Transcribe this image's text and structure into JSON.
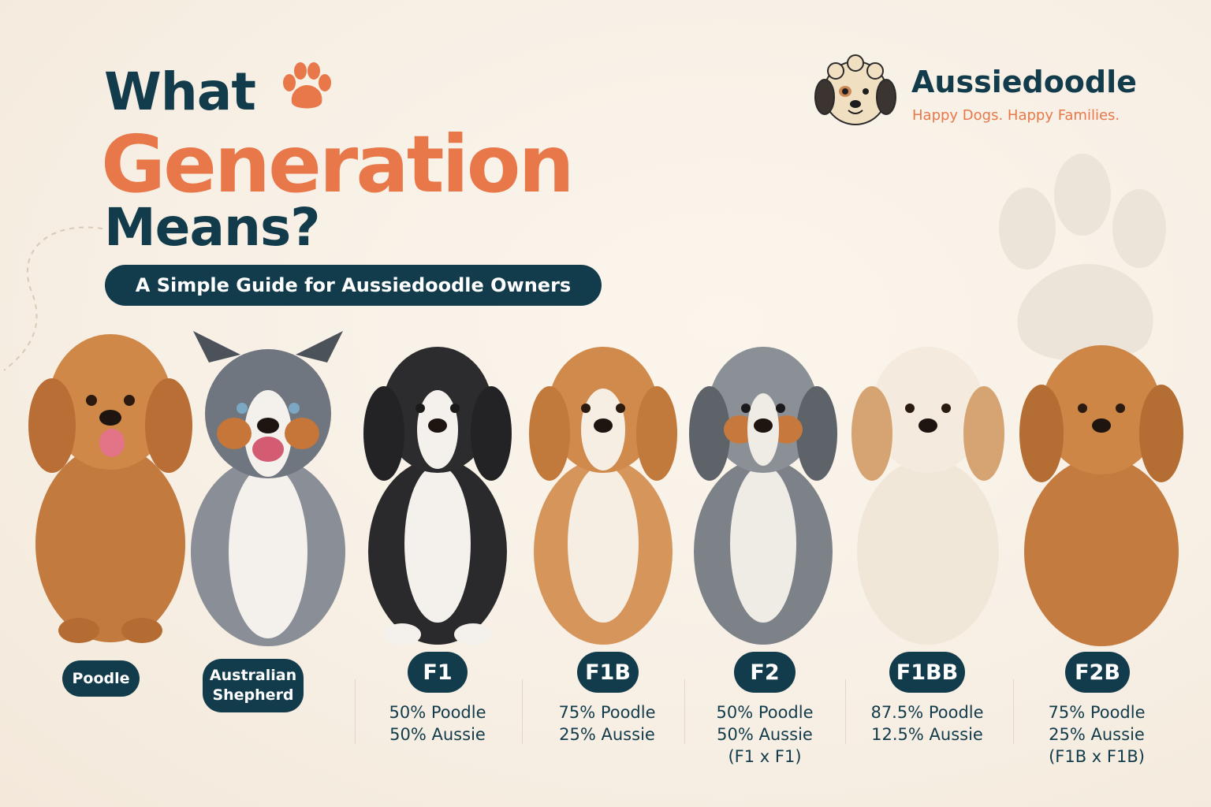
{
  "title": {
    "line1": "What",
    "line2": "Generation",
    "line3": "Means?",
    "subtitle": "A Simple Guide for Aussiedoodle Owners"
  },
  "brand": {
    "name": "Aussiedoodle",
    "tagline": "Happy Dogs. Happy Families."
  },
  "colors": {
    "navy": "#123b4b",
    "orange": "#e8784a",
    "background": "#f7efe4"
  },
  "parents": [
    {
      "label": "Poodle"
    },
    {
      "label_line1": "Australian",
      "label_line2": "Shepherd"
    }
  ],
  "generations": [
    {
      "code": "F1",
      "line1": "50% Poodle",
      "line2": "50% Aussie",
      "line3": ""
    },
    {
      "code": "F1B",
      "line1": "75% Poodle",
      "line2": "25% Aussie",
      "line3": ""
    },
    {
      "code": "F2",
      "line1": "50% Poodle",
      "line2": "50% Aussie",
      "line3": "(F1 x F1)"
    },
    {
      "code": "F1BB",
      "line1": "87.5% Poodle",
      "line2": "12.5% Aussie",
      "line3": ""
    },
    {
      "code": "F2B",
      "line1": "75% Poodle",
      "line2": "25% Aussie",
      "line3": "(F1B x F1B)"
    }
  ],
  "icons": [
    "paw-icon",
    "dog-face-logo-icon",
    "background-paw-icon"
  ]
}
